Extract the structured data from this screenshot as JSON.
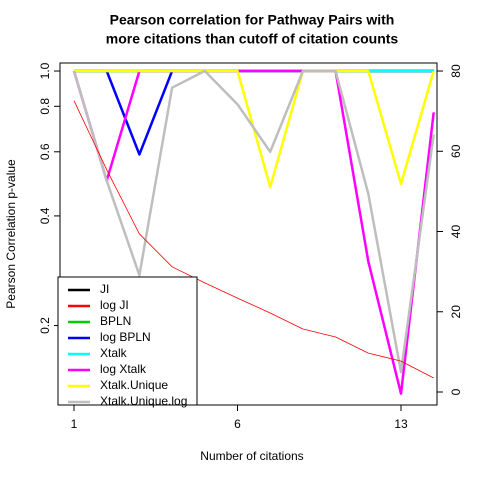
{
  "chart_data": {
    "type": "line",
    "title": [
      "Pearson correlation for Pathway Pairs with",
      "more citations than cutoff of citation counts"
    ],
    "x_label": "Number of citations",
    "y_label": "Pearson Correlation p-value",
    "categories": [
      "1",
      null,
      null,
      null,
      null,
      "6",
      null,
      null,
      null,
      null,
      "13",
      null
    ],
    "ylim": [
      0.121,
      1.052
    ],
    "log_y": true,
    "yticks": [
      0.2,
      0.4,
      0.6,
      0.8,
      {
        "value": 1,
        "label": "1.0"
      }
    ],
    "y2lim": [
      -3.24,
      82
    ],
    "y2ticks": [
      0,
      20,
      40,
      60,
      80
    ],
    "legend": "bottomleft",
    "series": [
      {
        "name": "JI",
        "color": "#000000",
        "values": [
          1,
          1,
          1,
          1,
          1,
          1,
          1,
          1,
          1,
          1,
          1,
          1
        ]
      },
      {
        "name": "log JI",
        "color": "#ff0000",
        "values": [
          1,
          1,
          1,
          1,
          1,
          1,
          1,
          1,
          1,
          1,
          1,
          1
        ]
      },
      {
        "name": "BPLN",
        "color": "#00cd00",
        "values": [
          1,
          1,
          1,
          1,
          1,
          1,
          1,
          1,
          1,
          1,
          1,
          1
        ]
      },
      {
        "name": "log BPLN",
        "color": "#0000ff",
        "values": [
          1,
          1,
          0.59,
          1,
          1,
          1,
          1,
          1,
          1,
          1,
          1,
          1
        ]
      },
      {
        "name": "Xtalk",
        "color": "#00ffff",
        "values": [
          1,
          1,
          1,
          1,
          1,
          1,
          1,
          1,
          1,
          1,
          1,
          1
        ]
      },
      {
        "name": "log Xtalk",
        "color": "#ff00ff",
        "values": [
          1,
          0.5,
          1,
          1,
          1,
          1,
          1,
          1,
          1,
          0.3,
          0.13,
          0.77
        ]
      },
      {
        "name": "Xtalk.Unique",
        "color": "#ffff00",
        "values": [
          1,
          1,
          1,
          1,
          1,
          1,
          0.48,
          1,
          1,
          1,
          0.49,
          1
        ]
      },
      {
        "name": "Xtalk.Unique.log",
        "color": "#bebebe",
        "values": [
          1,
          0.5,
          0.275,
          0.9,
          1,
          0.81,
          0.6,
          1,
          1,
          0.46,
          0.149,
          0.67
        ]
      },
      {
        "color": "#ff0000",
        "axis": "y2",
        "values": [
          72.6,
          55.4,
          39.4,
          31.2,
          27.2,
          23.4,
          19.7,
          15.7,
          13.7,
          9.7,
          7.7,
          3.5
        ]
      }
    ]
  }
}
